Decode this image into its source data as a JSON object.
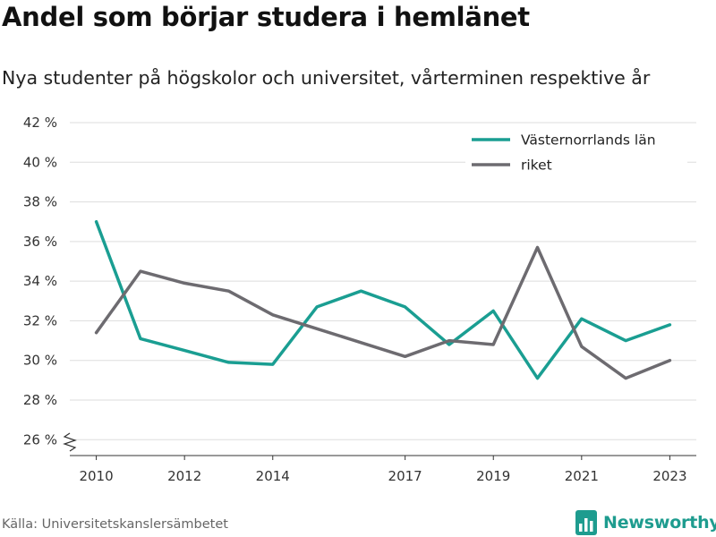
{
  "header": {
    "title": "Andel som börjar studera i hemlänet",
    "subtitle": "Nya studenter på högskolor och universitet, vårterminen respektive år"
  },
  "footer": {
    "source": "Källa: Universitetskanslersämbetet",
    "brand": "Newsworthy",
    "brand_icon": "bar-chart-logo-icon"
  },
  "colors": {
    "series_1": "#1a9e92",
    "series_2": "#6d6b70",
    "grid": "#dddddd",
    "brand": "#1e9c8f"
  },
  "chart_data": {
    "type": "line",
    "title": "Andel som börjar studera i hemlänet",
    "subtitle": "Nya studenter på högskolor och universitet, vårterminen respektive år",
    "x": [
      2010,
      2011,
      2012,
      2013,
      2014,
      2015,
      2016,
      2017,
      2018,
      2019,
      2020,
      2021,
      2022,
      2023
    ],
    "x_ticks": [
      2010,
      2012,
      2014,
      2017,
      2019,
      2021,
      2023
    ],
    "y_ticks": [
      26,
      28,
      30,
      32,
      34,
      36,
      38,
      40,
      42
    ],
    "y_tick_suffix": " %",
    "ylim": [
      25.2,
      42
    ],
    "y_axis_break": true,
    "grid": true,
    "legend_position": "top-right",
    "series": [
      {
        "name": "Västernorrlands län",
        "color": "#1a9e92",
        "values": [
          37.0,
          31.1,
          30.5,
          29.9,
          29.8,
          32.7,
          33.5,
          32.7,
          30.8,
          32.5,
          29.1,
          32.1,
          31.0,
          31.8
        ]
      },
      {
        "name": "riket",
        "color": "#6d6b70",
        "values": [
          31.4,
          34.5,
          33.9,
          33.5,
          32.3,
          31.6,
          30.9,
          30.2,
          31.0,
          30.8,
          35.7,
          30.7,
          29.1,
          30.0
        ]
      }
    ]
  }
}
